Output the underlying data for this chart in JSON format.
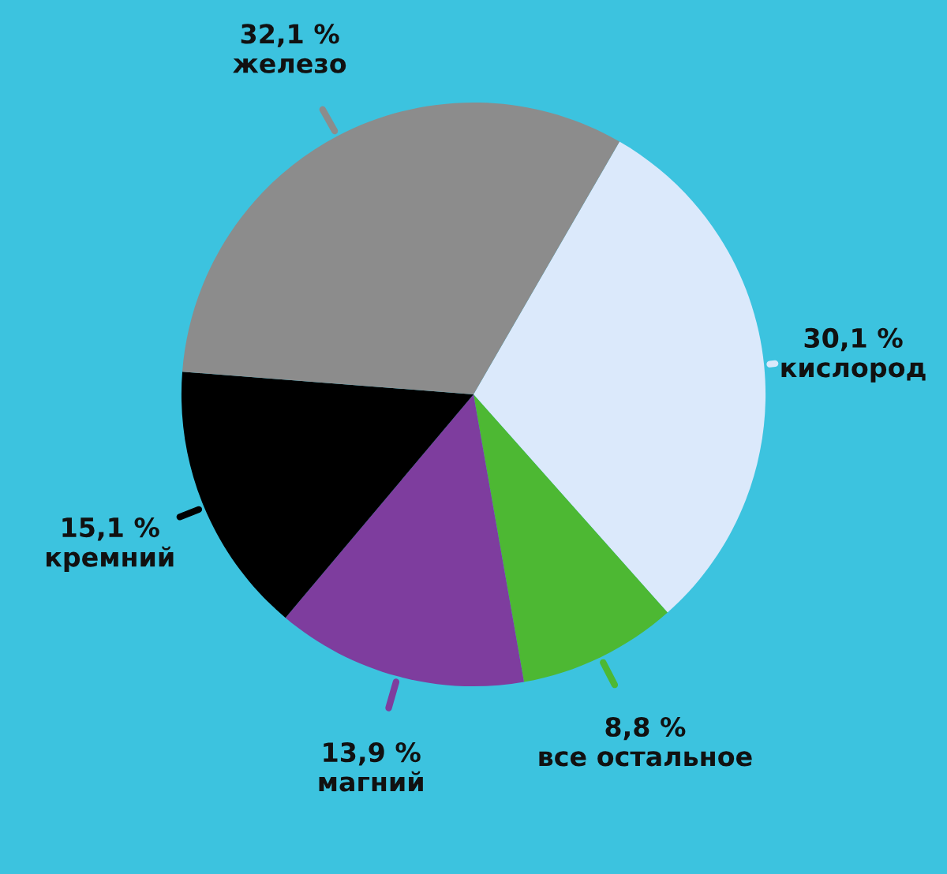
{
  "chart_data": {
    "type": "pie",
    "categories": [
      "кислород",
      "все остальное",
      "магний",
      "кремний",
      "железо"
    ],
    "values": [
      30.1,
      8.8,
      13.9,
      15.1,
      32.1
    ],
    "value_labels": [
      "30,1 %",
      "8,8 %",
      "13,9 %",
      "15,1 %",
      "32,1 %"
    ],
    "colors": [
      "#dbe9fb",
      "#4db833",
      "#7e3d9e",
      "#000000",
      "#8c8c8c"
    ],
    "legend": false
  }
}
